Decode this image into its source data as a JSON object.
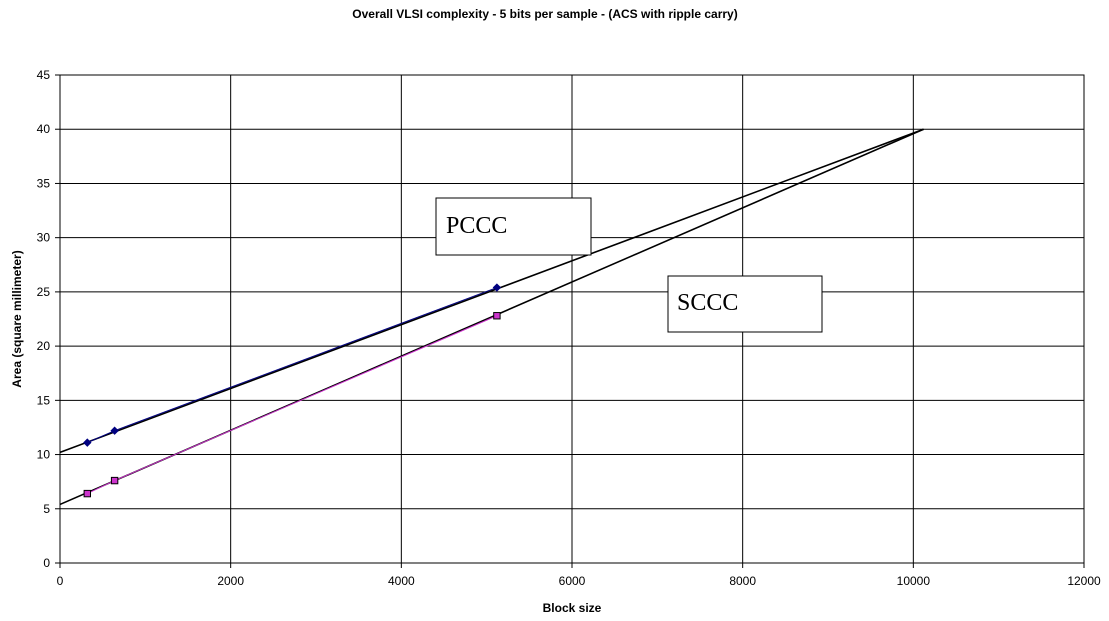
{
  "chart_data": {
    "type": "line",
    "title": "Overall  VLSI complexity - 5 bits per sample - (ACS with  ripple carry)",
    "xlabel": "Block size",
    "ylabel": "Area (square millimeter)",
    "xlim": [
      0,
      12000
    ],
    "ylim": [
      0,
      45
    ],
    "x_ticks": [
      0,
      2000,
      4000,
      6000,
      8000,
      10000,
      12000
    ],
    "y_ticks": [
      0,
      5,
      10,
      15,
      20,
      25,
      30,
      35,
      40,
      45
    ],
    "grid": true,
    "series": [
      {
        "name": "PCCC",
        "color": "#000080",
        "marker": "diamond",
        "points": [
          {
            "x": 320,
            "y": 11.1
          },
          {
            "x": 640,
            "y": 12.2
          },
          {
            "x": 5120,
            "y": 25.4
          }
        ],
        "trendline": {
          "x": [
            0,
            10120
          ],
          "y": [
            10.2,
            40.0
          ]
        }
      },
      {
        "name": "SCCC",
        "color": "#cc33cc",
        "marker": "square",
        "points": [
          {
            "x": 320,
            "y": 6.4
          },
          {
            "x": 640,
            "y": 7.6
          },
          {
            "x": 5120,
            "y": 22.8
          }
        ],
        "trendline": {
          "x": [
            0,
            10120
          ],
          "y": [
            5.4,
            40.0
          ]
        }
      }
    ],
    "annotations": [
      {
        "text": "PCCC"
      },
      {
        "text": "SCCC"
      }
    ]
  }
}
